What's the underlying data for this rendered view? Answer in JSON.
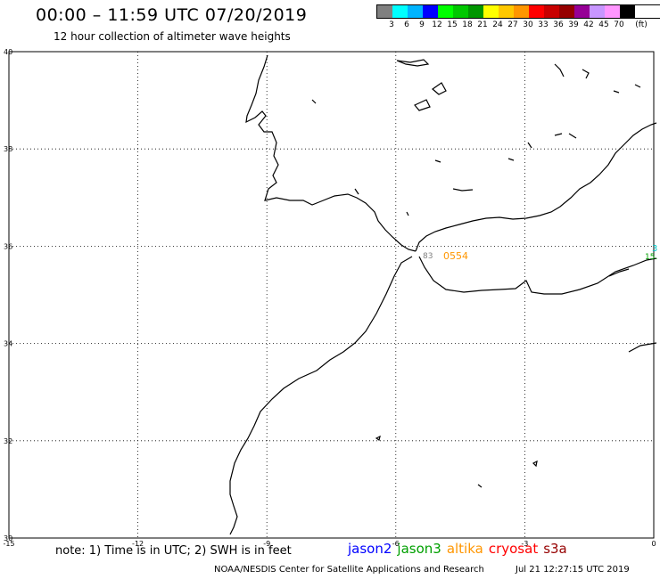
{
  "title": "00:00 – 11:59 UTC 07/20/2019",
  "subtitle": "12 hour collection of altimeter wave heights",
  "legend": {
    "unit": "(ft)",
    "colors": [
      "#808080",
      "#00ffff",
      "#00b4ff",
      "#0000ff",
      "#00ff00",
      "#00c800",
      "#009600",
      "#ffff00",
      "#ffc800",
      "#ff9600",
      "#ff0000",
      "#c80000",
      "#960000",
      "#960096",
      "#c896ff",
      "#ff96ff",
      "#000000"
    ],
    "ticks": [
      "3",
      "6",
      "9",
      "12",
      "15",
      "18",
      "21",
      "24",
      "27",
      "30",
      "33",
      "36",
      "39",
      "42",
      "45",
      "70"
    ]
  },
  "map": {
    "lat_labels": [
      "40",
      "38",
      "36",
      "34",
      "32",
      "30"
    ],
    "lon_labels": [
      "-15",
      "-12",
      "-9",
      "-6",
      "-3",
      "0"
    ],
    "annotations": {
      "a1": "0554",
      "a2": "3",
      "a3": "15.",
      "a4": "83"
    }
  },
  "note": "note: 1) Time is in UTC; 2) SWH is in feet",
  "satellites": [
    {
      "name": "jason2",
      "color": "#0000ff"
    },
    {
      "name": "jason3",
      "color": "#00a000"
    },
    {
      "name": "altika",
      "color": "#ff9600"
    },
    {
      "name": "cryosat",
      "color": "#ff0000"
    },
    {
      "name": "s3a",
      "color": "#960000"
    }
  ],
  "credit": "NOAA/NESDIS Center for Satellite Applications and Research",
  "timestamp": "Jul 21 12:27:15 UTC 2019"
}
